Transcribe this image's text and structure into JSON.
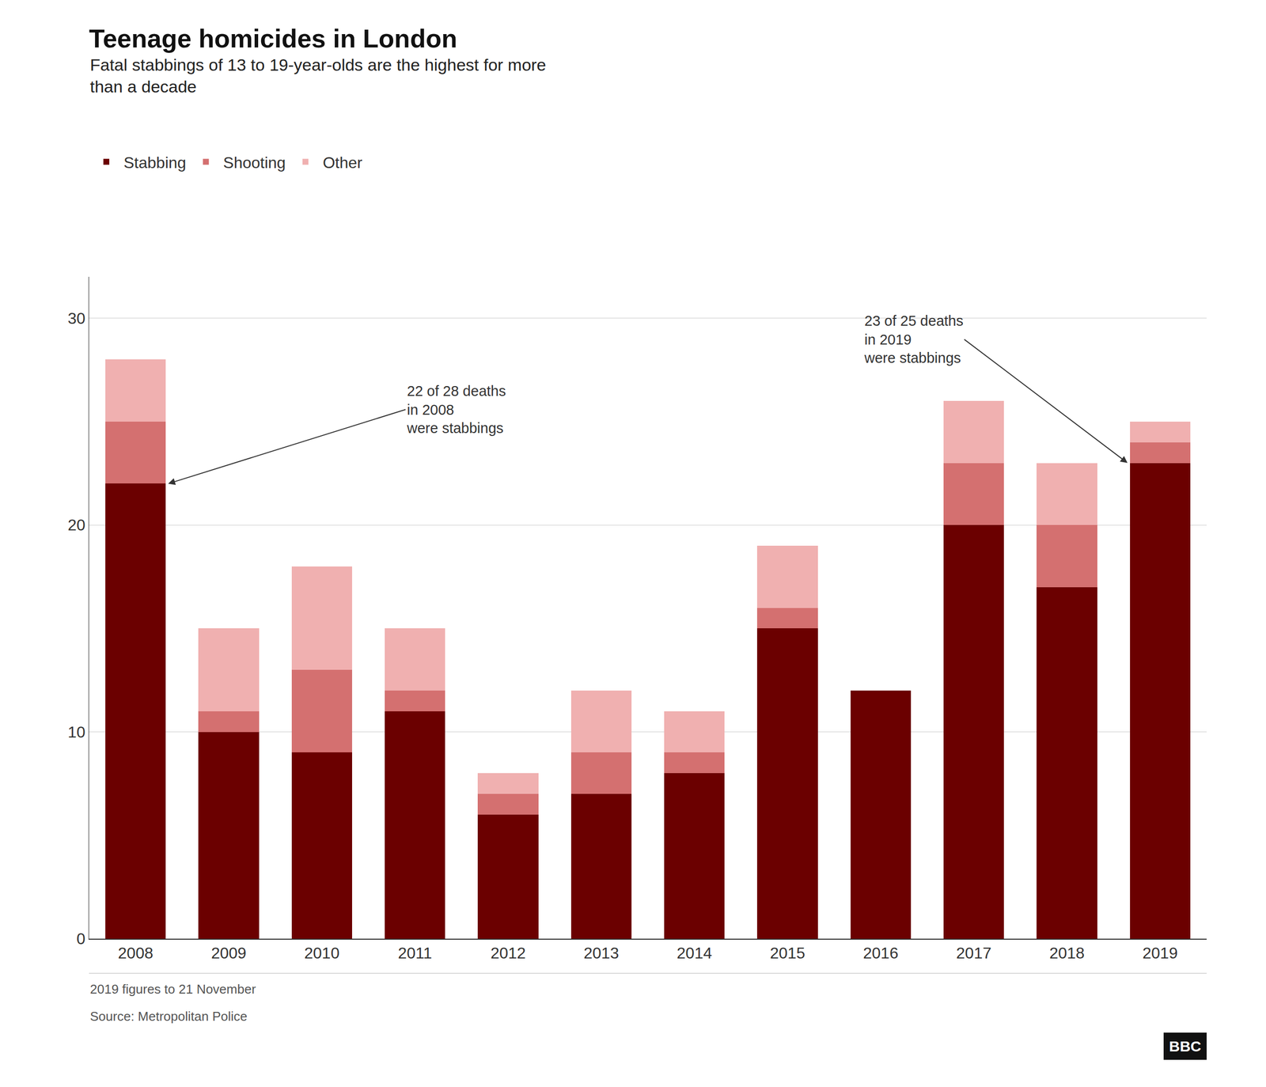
{
  "chart_data": {
    "type": "bar",
    "title": "Teenage homicides in London",
    "subtitle": "Fatal stabbings of 13 to 19-year-olds are the highest for more\nthan a decade",
    "categories": [
      "2008",
      "2009",
      "2010",
      "2011",
      "2012",
      "2013",
      "2014",
      "2015",
      "2016",
      "2017",
      "2018",
      "2019"
    ],
    "series": [
      {
        "name": "Stabbing",
        "color": "#6b0000",
        "values": [
          22,
          10,
          9,
          11,
          6,
          7,
          8,
          15,
          12,
          20,
          17,
          23
        ]
      },
      {
        "name": "Shooting",
        "color": "#d47070",
        "values": [
          3,
          1,
          4,
          1,
          1,
          2,
          1,
          1,
          0,
          3,
          3,
          1
        ]
      },
      {
        "name": "Other",
        "color": "#f0b0b0",
        "values": [
          3,
          4,
          5,
          3,
          1,
          3,
          2,
          3,
          0,
          3,
          3,
          1
        ]
      }
    ],
    "stacked": true,
    "ylim": [
      0,
      32
    ],
    "yticks": [
      0,
      10,
      20,
      30
    ],
    "grid": true,
    "legend": "top left",
    "annotations": [
      {
        "text": "22 of 28 deaths\nin 2008\nwere stabbings",
        "x": "2008",
        "y": 22
      },
      {
        "text": "23 of 25 deaths\nin 2019\nwere stabbings",
        "x": "2019",
        "y": 23
      }
    ],
    "note": "2019 figures to 21 November",
    "source": "Source: Metropolitan Police",
    "logo": "BBC"
  }
}
